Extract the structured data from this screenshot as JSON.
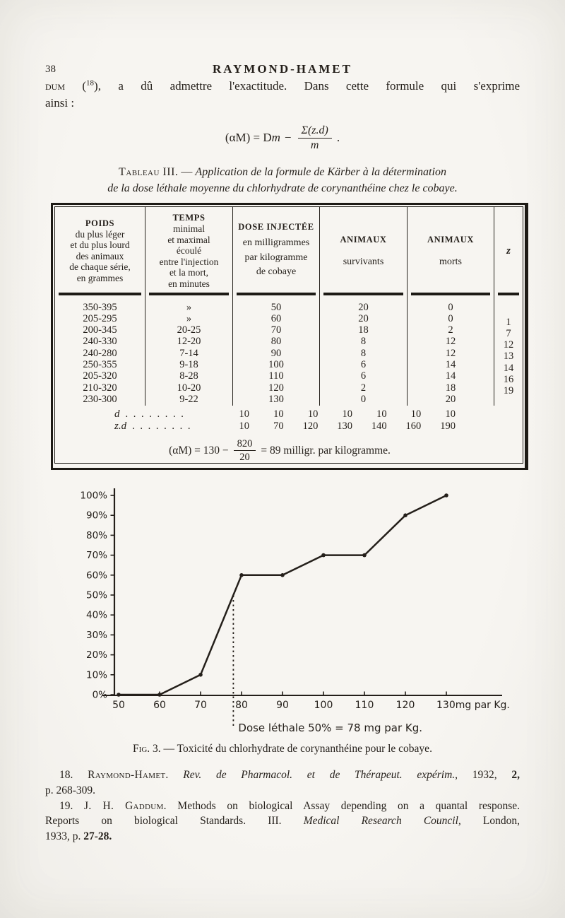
{
  "page": {
    "number": "38",
    "running_head": "RAYMOND-HAMET"
  },
  "paragraph": {
    "lead": "dum",
    "open": " (",
    "ref": "18",
    "rest": "), a dû admettre l'exactitude. Dans cette formule qui s'exprime",
    "line2": "ainsi :"
  },
  "formula_main": {
    "pre": "(αM) = D",
    "var": "m",
    "minus": "−",
    "num": "Σ(z.d)",
    "den": "m",
    "dot": "."
  },
  "table_caption": {
    "label": "Tableau III.",
    "dash": " — ",
    "line1_italic": "Application de la formule de Kärber à la détermination",
    "line2_italic": "de la dose léthale moyenne du chlorhydrate de corynanthéine chez le cobaye."
  },
  "table": {
    "headers": [
      {
        "title": "POIDS",
        "sub": "du plus léger\net du plus lourd\ndes animaux\nde chaque série,\nen grammes"
      },
      {
        "title": "TEMPS",
        "sub": "minimal\net maximal\nécoulé\nentre l'injection\net la mort,\nen minutes"
      },
      {
        "title": "DOSE INJECTÉE",
        "sub": "en milligrammes\npar kilogramme\nde cobaye"
      },
      {
        "title": "ANIMAUX",
        "sub": "survivants"
      },
      {
        "title": "ANIMAUX",
        "sub": "morts"
      },
      {
        "title": "z",
        "sub": ""
      }
    ],
    "rows": [
      [
        "350-395",
        "»",
        "50",
        "20",
        "0"
      ],
      [
        "205-295",
        "»",
        "60",
        "20",
        "0"
      ],
      [
        "200-345",
        "20-25",
        "70",
        "18",
        "2"
      ],
      [
        "240-330",
        "12-20",
        "80",
        "8",
        "12"
      ],
      [
        "240-280",
        "7-14",
        "90",
        "8",
        "12"
      ],
      [
        "250-355",
        "9-18",
        "100",
        "6",
        "14"
      ],
      [
        "205-320",
        "8-28",
        "110",
        "6",
        "14"
      ],
      [
        "210-320",
        "10-20",
        "120",
        "2",
        "18"
      ],
      [
        "230-300",
        "9-22",
        "130",
        "0",
        "20"
      ]
    ],
    "z_values": [
      "1",
      "7",
      "12",
      "13",
      "14",
      "16",
      "19"
    ],
    "d_label": "d",
    "zd_label": "z.d",
    "dots": ". . . . . . . .",
    "d_values": [
      "10",
      "10",
      "10",
      "10",
      "10",
      "10",
      "10"
    ],
    "zd_values": [
      "10",
      "70",
      "120",
      "130",
      "140",
      "160",
      "190"
    ],
    "result": {
      "pre": "(αM) = 130 −",
      "num": "820",
      "den": "20",
      "post": "= 89 milligr. par kilogramme."
    }
  },
  "chart_data": {
    "type": "line",
    "title": "",
    "x": [
      50,
      60,
      70,
      80,
      90,
      100,
      110,
      120,
      130
    ],
    "values": [
      0,
      0,
      10,
      60,
      60,
      70,
      70,
      90,
      100
    ],
    "x_tick_labels": [
      "50",
      "60",
      "70",
      "80",
      "90",
      "100",
      "110",
      "120",
      "130mg par Kg."
    ],
    "y_tick_labels": [
      "0%",
      "10%",
      "20%",
      "30%",
      "40%",
      "50%",
      "60%",
      "70%",
      "80%",
      "90%",
      "100%"
    ],
    "xlim": [
      50,
      130
    ],
    "ylim": [
      0,
      100
    ],
    "grid": false,
    "annotation": {
      "text": "Dose léthale 50% = 78 mg par Kg.",
      "x": 78,
      "y": 50
    }
  },
  "figure_caption": {
    "label": "Fig. 3.",
    "dash": " — ",
    "text": "Toxicité du chlorhydrate de corynanthéine pour le cobaye."
  },
  "references": {
    "r18": {
      "num": "18. ",
      "author": "Raymond-Hamet.",
      "italic": " Rev. de Pharmacol. et de Thérapeut. expérim., ",
      "year": "1932, ",
      "vol": "2,",
      "line2": "p. 268-309."
    },
    "r19": {
      "num": "19. ",
      "author": "J. H. Gaddum.",
      "text": " Methods on biological Assay depending on a quantal response.",
      "line2_pre": "Reports on biological Standards. III. ",
      "line2_italic": "Medical Research Council,",
      "line2_post": " London,",
      "line3_pre": "1933, p. ",
      "line3_bold": "27-28."
    }
  },
  "colors": {
    "ink": "#241f1a",
    "paper": "#f4f2ee"
  }
}
